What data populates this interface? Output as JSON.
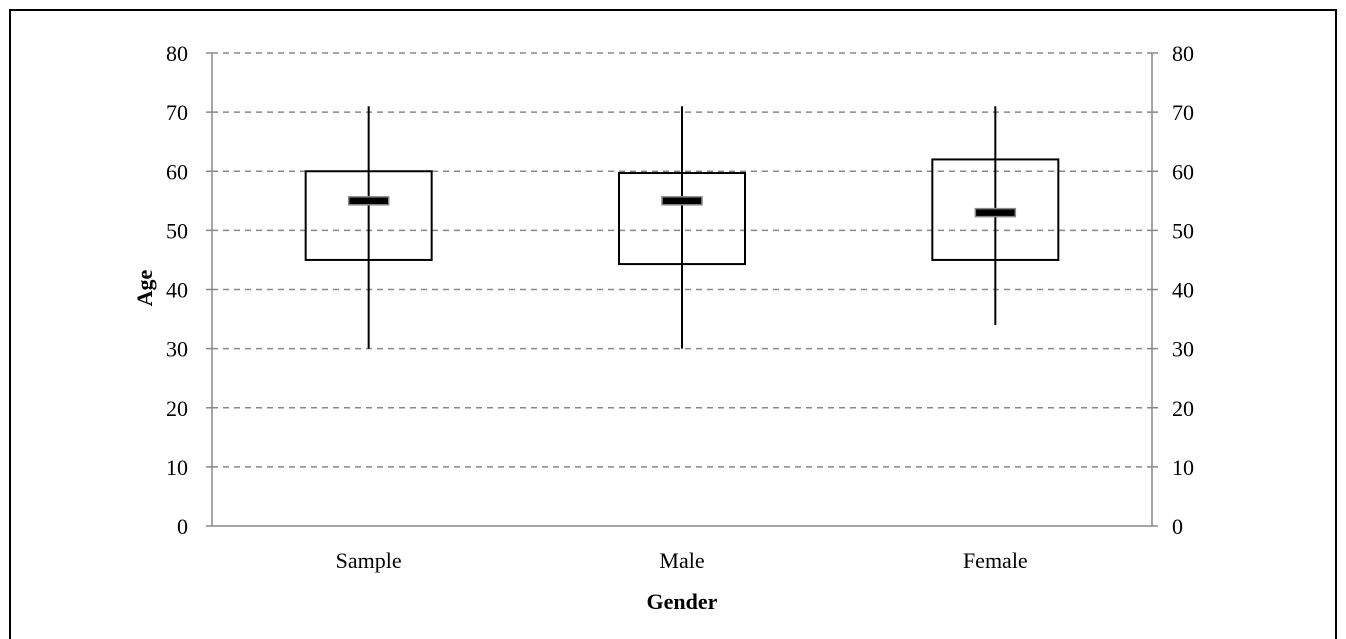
{
  "chart_data": {
    "type": "box",
    "categories": [
      "Sample",
      "Male",
      "Female"
    ],
    "boxes": [
      {
        "category": "Sample",
        "min": 30,
        "q1": 45,
        "median": 55,
        "q3": 60,
        "max": 71
      },
      {
        "category": "Male",
        "min": 30,
        "q1": 44.3,
        "median": 55,
        "q3": 59.7,
        "max": 71
      },
      {
        "category": "Female",
        "min": 34,
        "q1": 45,
        "median": 53,
        "q3": 62,
        "max": 71
      }
    ],
    "title": "",
    "xlabel": "Gender",
    "ylabel": "Age",
    "ylim": [
      0,
      80
    ],
    "yticks": [
      "0",
      "10",
      "20",
      "30",
      "40",
      "50",
      "60",
      "70",
      "80"
    ],
    "secondary_yticks": [
      "0",
      "10",
      "20",
      "30",
      "40",
      "50",
      "60",
      "70",
      "80"
    ],
    "grid": true,
    "grid_style": "dashed",
    "colors": {
      "grid": "#888888",
      "axis": "#888888",
      "box_stroke": "#000000",
      "median_fill": "#000000",
      "median_outline": "#888888"
    }
  }
}
